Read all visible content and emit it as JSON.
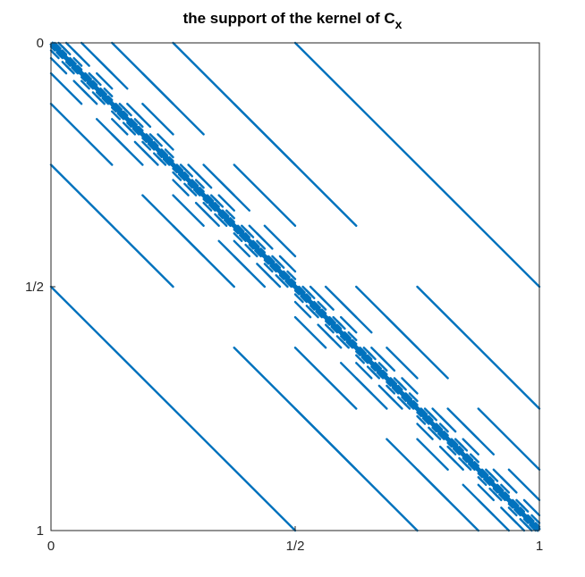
{
  "chart_data": {
    "type": "line",
    "title": "the support of the kernel of C",
    "title_subscript": "x",
    "xlabel": "",
    "ylabel": "",
    "xlim": [
      0,
      1
    ],
    "ylim": [
      0,
      1
    ],
    "y_reversed": true,
    "x_ticks": [
      {
        "value": 0,
        "label": "0"
      },
      {
        "value": 0.5,
        "label": "1/2"
      },
      {
        "value": 1,
        "label": "1"
      }
    ],
    "y_ticks": [
      {
        "value": 0,
        "label": "0"
      },
      {
        "value": 0.5,
        "label": "1/2"
      },
      {
        "value": 1,
        "label": "1"
      }
    ],
    "grid": false,
    "line_color": "#0072bd",
    "description_of_structure": "",
    "diagonal_offsets": [
      0.5,
      0.25,
      0.125
    ],
    "max_level": 7,
    "segments": [
      {
        "x": [
          0.5,
          1
        ],
        "y": [
          0,
          0.5
        ]
      },
      {
        "x": [
          0,
          0.5
        ],
        "y": [
          0.5,
          1
        ]
      }
    ]
  }
}
